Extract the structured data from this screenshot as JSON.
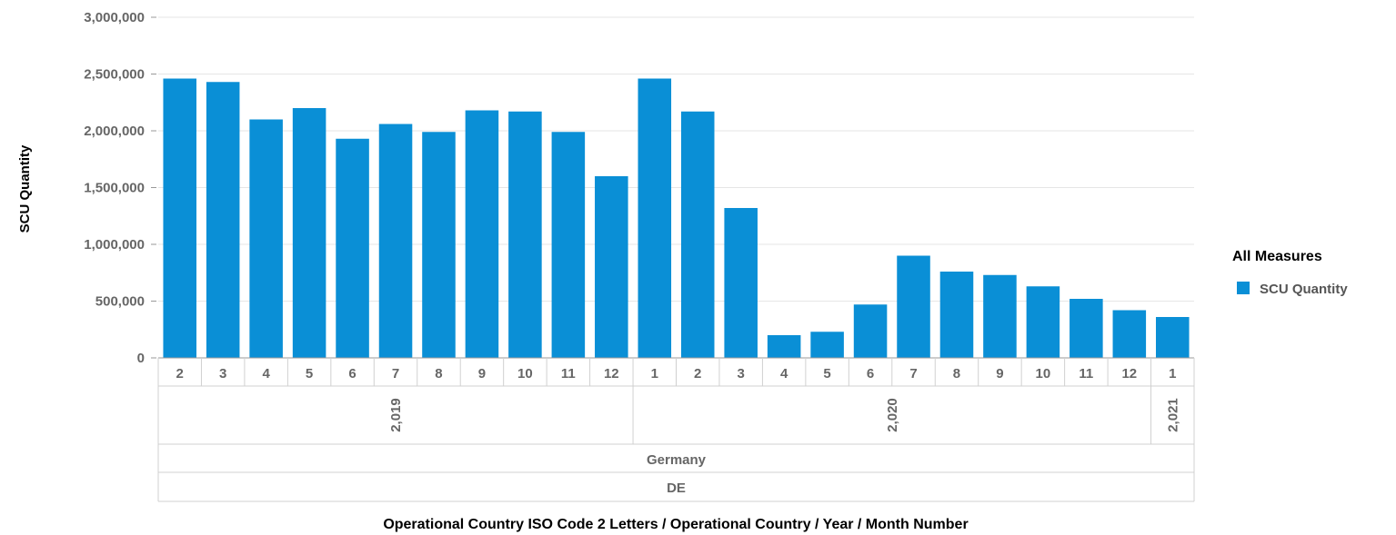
{
  "chart_data": {
    "type": "bar",
    "ylabel": "SCU Quantity",
    "xlabel": "Operational Country ISO Code 2 Letters / Operational Country / Year / Month Number",
    "ylim": [
      0,
      3000000
    ],
    "yticks": [
      "0",
      "500,000",
      "1,000,000",
      "1,500,000",
      "2,000,000",
      "2,500,000",
      "3,000,000"
    ],
    "ytick_values": [
      0,
      500000,
      1000000,
      1500000,
      2000000,
      2500000,
      3000000
    ],
    "grid": true,
    "legend": {
      "title": "All Measures",
      "placement": "right",
      "items": [
        "SCU Quantity"
      ]
    },
    "series": [
      {
        "name": "SCU Quantity",
        "color": "#0a8fd6",
        "values": [
          2460000,
          2430000,
          2100000,
          2200000,
          1930000,
          2060000,
          1990000,
          2180000,
          2170000,
          1990000,
          1600000,
          2460000,
          2170000,
          1320000,
          200000,
          230000,
          470000,
          900000,
          760000,
          730000,
          630000,
          520000,
          420000,
          360000
        ]
      }
    ],
    "categories": [
      "2",
      "3",
      "4",
      "5",
      "6",
      "7",
      "8",
      "9",
      "10",
      "11",
      "12",
      "1",
      "2",
      "3",
      "4",
      "5",
      "6",
      "7",
      "8",
      "9",
      "10",
      "11",
      "12",
      "1"
    ],
    "years": [
      {
        "label": "2,019",
        "count": 11
      },
      {
        "label": "2,020",
        "count": 12
      },
      {
        "label": "2,021",
        "count": 1
      }
    ],
    "country": "Germany",
    "iso_code": "DE"
  }
}
